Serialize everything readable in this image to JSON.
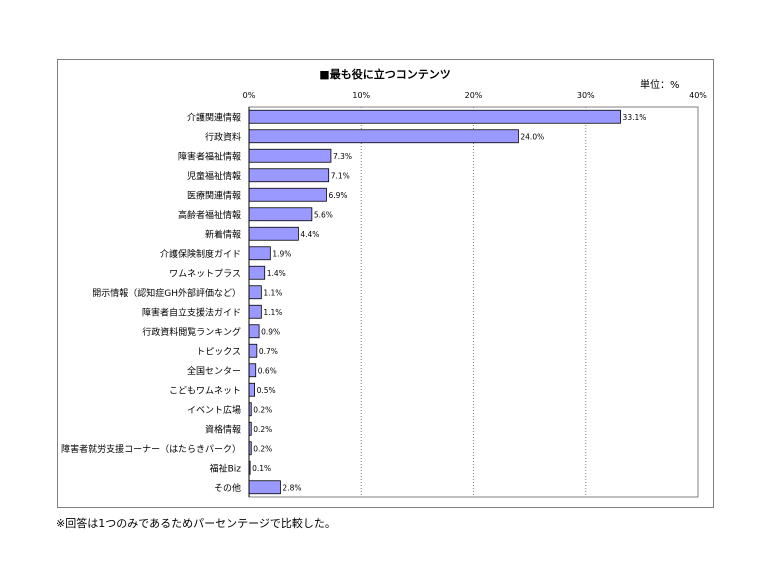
{
  "chart_data": {
    "type": "bar",
    "orientation": "horizontal",
    "title": "■最も役に立つコンテンツ",
    "unit": "単位：%",
    "xlim": [
      0,
      40
    ],
    "xticks": [
      "0%",
      "10%",
      "20%",
      "30%",
      "40%"
    ],
    "grid": "vertical-dashed",
    "bar_color": "#9999ff",
    "categories": [
      "介護関連情報",
      "行政資料",
      "障害者福祉情報",
      "児童福祉情報",
      "医療関連情報",
      "高齢者福祉情報",
      "新着情報",
      "介護保険制度ガイド",
      "ワムネットプラス",
      "開示情報（認知症GH外部評価など）",
      "障害者自立支援法ガイド",
      "行政資料閲覧ランキング",
      "トピックス",
      "全国センター",
      "こどもワムネット",
      "イベント広場",
      "資格情報",
      "障害者就労支援コーナー（はたらきパーク）",
      "福祉Biz",
      "その他"
    ],
    "values": [
      33.1,
      24.0,
      7.3,
      7.1,
      6.9,
      5.6,
      4.4,
      1.9,
      1.4,
      1.1,
      1.1,
      0.9,
      0.7,
      0.6,
      0.5,
      0.2,
      0.2,
      0.2,
      0.1,
      2.8
    ],
    "value_labels": [
      "33.1%",
      "24.0%",
      "7.3%",
      "7.1%",
      "6.9%",
      "5.6%",
      "4.4%",
      "1.9%",
      "1.4%",
      "1.1%",
      "1.1%",
      "0.9%",
      "0.7%",
      "0.6%",
      "0.5%",
      "0.2%",
      "0.2%",
      "0.2%",
      "0.1%",
      "2.8%"
    ]
  },
  "footnote": "※回答は1つのみであるためパーセンテージで比較した。"
}
